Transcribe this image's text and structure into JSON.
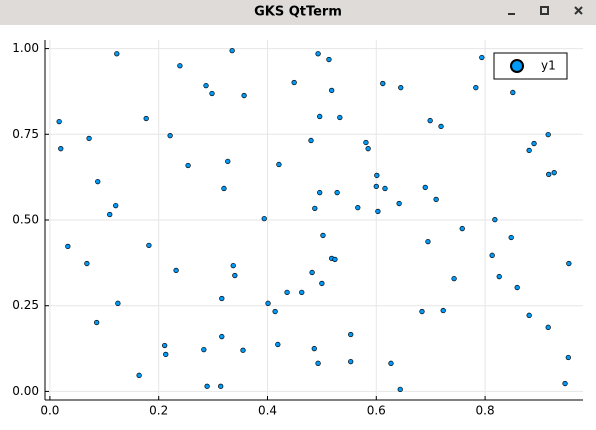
{
  "window_title": "GKS QtTerm",
  "chart_data": {
    "type": "scatter",
    "series": [
      {
        "name": "y1",
        "color": "#009af9",
        "x": [
          0.017,
          0.02,
          0.033,
          0.068,
          0.072,
          0.086,
          0.088,
          0.11,
          0.121,
          0.123,
          0.125,
          0.164,
          0.177,
          0.182,
          0.211,
          0.213,
          0.221,
          0.232,
          0.239,
          0.254,
          0.283,
          0.287,
          0.289,
          0.298,
          0.314,
          0.316,
          0.316,
          0.32,
          0.327,
          0.335,
          0.337,
          0.34,
          0.355,
          0.357,
          0.394,
          0.401,
          0.414,
          0.419,
          0.421,
          0.436,
          0.449,
          0.463,
          0.48,
          0.482,
          0.486,
          0.487,
          0.493,
          0.493,
          0.496,
          0.496,
          0.5,
          0.502,
          0.513,
          0.518,
          0.518,
          0.524,
          0.528,
          0.533,
          0.553,
          0.553,
          0.566,
          0.581,
          0.585,
          0.6,
          0.601,
          0.603,
          0.612,
          0.616,
          0.627,
          0.642,
          0.644,
          0.645,
          0.684,
          0.69,
          0.695,
          0.699,
          0.71,
          0.719,
          0.723,
          0.743,
          0.758,
          0.783,
          0.794,
          0.813,
          0.818,
          0.826,
          0.848,
          0.851,
          0.859,
          0.881,
          0.881,
          0.89,
          0.916,
          0.916,
          0.917,
          0.927,
          0.947,
          0.953,
          0.954
        ],
        "values": [
          0.787,
          0.708,
          0.423,
          0.373,
          0.738,
          0.201,
          0.612,
          0.516,
          0.542,
          0.985,
          0.257,
          0.047,
          0.796,
          0.426,
          0.134,
          0.108,
          0.746,
          0.353,
          0.95,
          0.659,
          0.122,
          0.892,
          0.015,
          0.869,
          0.015,
          0.271,
          0.16,
          0.592,
          0.671,
          0.994,
          0.367,
          0.338,
          0.12,
          0.863,
          0.504,
          0.257,
          0.233,
          0.137,
          0.662,
          0.289,
          0.901,
          0.289,
          0.732,
          0.347,
          0.125,
          0.534,
          0.985,
          0.082,
          0.58,
          0.802,
          0.315,
          0.455,
          0.968,
          0.878,
          0.388,
          0.385,
          0.58,
          0.799,
          0.166,
          0.087,
          0.536,
          0.726,
          0.708,
          0.598,
          0.63,
          0.525,
          0.898,
          0.592,
          0.082,
          0.548,
          0.006,
          0.886,
          0.233,
          0.595,
          0.437,
          0.79,
          0.56,
          0.773,
          0.236,
          0.329,
          0.475,
          0.886,
          0.974,
          0.397,
          0.501,
          0.335,
          0.449,
          0.872,
          0.303,
          0.703,
          0.222,
          0.723,
          0.187,
          0.749,
          0.633,
          0.638,
          0.023,
          0.099,
          0.373
        ]
      }
    ],
    "xlim": [
      -0.009,
      0.98
    ],
    "ylim": [
      -0.025,
      1.025
    ],
    "xticks": [
      {
        "value": 0,
        "label": "0.0"
      },
      {
        "value": 0.2,
        "label": "0.2"
      },
      {
        "value": 0.4,
        "label": "0.4"
      },
      {
        "value": 0.6,
        "label": "0.6"
      },
      {
        "value": 0.8,
        "label": "0.8"
      }
    ],
    "yticks": [
      {
        "value": 0,
        "label": "0.00"
      },
      {
        "value": 0.25,
        "label": "0.25"
      },
      {
        "value": 0.5,
        "label": "0.50"
      },
      {
        "value": 0.75,
        "label": "0.75"
      },
      {
        "value": 1,
        "label": "1.00"
      }
    ],
    "grid": true,
    "legend": "top right"
  }
}
